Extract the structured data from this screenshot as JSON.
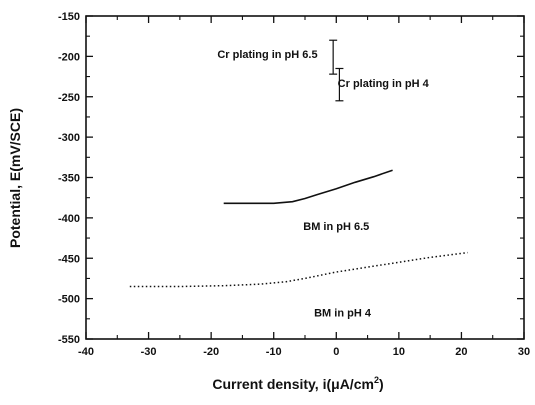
{
  "chart_data": {
    "type": "line",
    "xlabel": "Current density, i(μA/cm",
    "xlabel_sup": "2",
    "xlabel_close": ")",
    "ylabel": "Potential, E(mV/SCE)",
    "xlim": [
      -40,
      30
    ],
    "ylim": [
      -550,
      -150
    ],
    "x_ticks": [
      -40,
      -30,
      -20,
      -10,
      0,
      10,
      20,
      30
    ],
    "y_ticks": [
      -150,
      -200,
      -250,
      -300,
      -350,
      -400,
      -450,
      -500,
      -550
    ],
    "grid": false,
    "series": [
      {
        "name": "BM in pH 6.5",
        "style": "solid",
        "x": [
          -18,
          -14,
          -10,
          -7,
          -5,
          -3,
          0,
          3,
          6,
          9
        ],
        "y": [
          -382,
          -382,
          -382,
          -380,
          -376,
          -371,
          -364,
          -356,
          -349,
          -341
        ]
      },
      {
        "name": "BM in pH 4",
        "style": "dotted",
        "x": [
          -33,
          -25,
          -18,
          -12,
          -8,
          -5,
          0,
          5,
          10,
          15,
          21
        ],
        "y": [
          -485,
          -485,
          -484,
          -482,
          -479,
          -475,
          -467,
          -461,
          -455,
          -449,
          -443
        ]
      },
      {
        "name": "Cr plating in pH 6.5",
        "style": "range",
        "x": [
          -0.5
        ],
        "y_range": [
          -180,
          -222
        ]
      },
      {
        "name": "Cr plating in pH 4",
        "style": "range",
        "x": [
          0.5
        ],
        "y_range": [
          -215,
          -255
        ]
      }
    ],
    "annotations": [
      {
        "text": "Cr plating in pH 6.5",
        "x": -11,
        "y": -197
      },
      {
        "text": "Cr plating in pH 4",
        "x": 7.5,
        "y": -233
      },
      {
        "text": "BM in pH 6.5",
        "x": 0,
        "y": -410
      },
      {
        "text": "BM in pH 4",
        "x": 1,
        "y": -517
      }
    ]
  }
}
